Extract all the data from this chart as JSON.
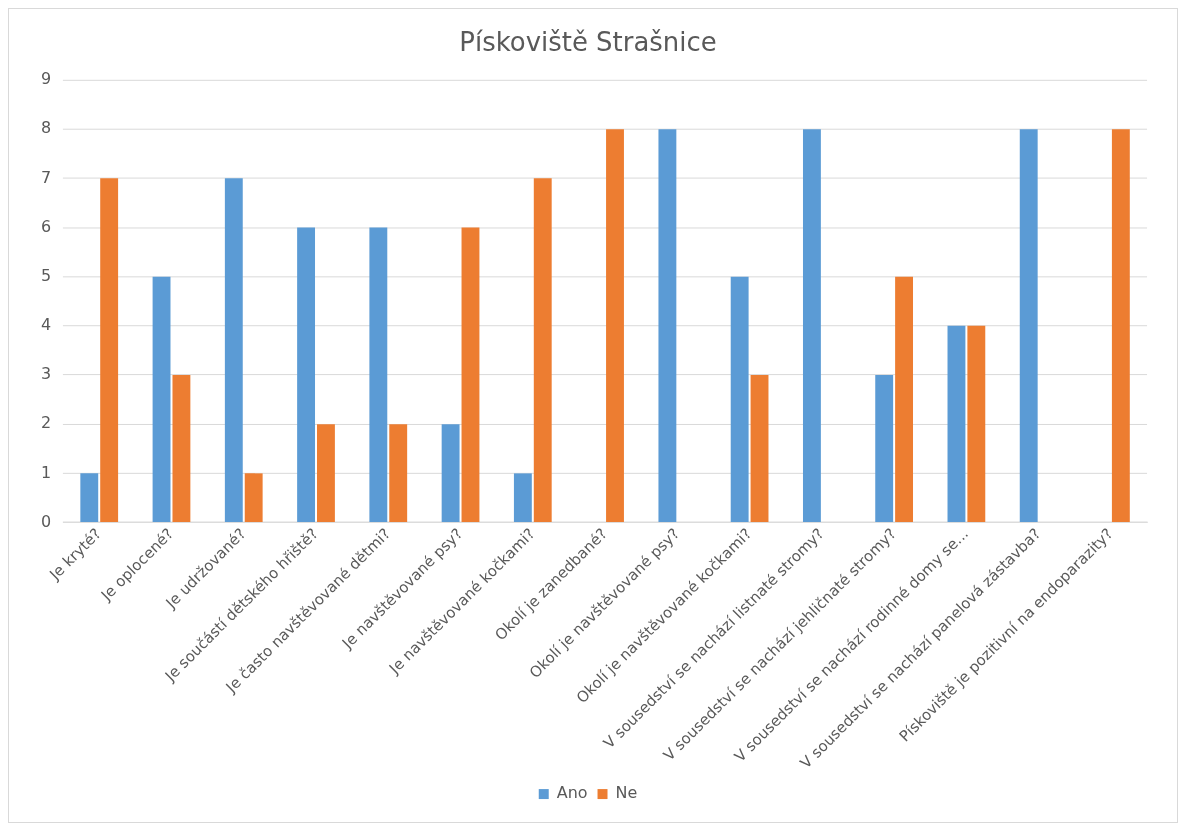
{
  "chart_data": {
    "type": "bar",
    "title": "Pískoviště Strašnice",
    "categories": [
      "Je kryté?",
      "Je oplocené?",
      "Je udržované?",
      "Je součástí dětského hřiště?",
      "Je často navštěvované dětmi?",
      "Je navštěvované psy?",
      "Je navštěvované kočkami?",
      "Okolí je zanedbané?",
      "Okolí je navštěvované psy?",
      "Okolí je navštěvované kočkami?",
      "V sousedství se nachází listnaté stromy?",
      "V sousedství se nachází jehličnaté stromy?",
      "V sousedství se nachází rodinné domy se...",
      "V sousedství se nachází panelová zástavba?",
      "Pískoviště je pozitivní na endoparazity?"
    ],
    "series": [
      {
        "name": "Ano",
        "color": "#5b9bd5",
        "values": [
          1,
          5,
          7,
          6,
          6,
          2,
          1,
          null,
          8,
          5,
          8,
          3,
          4,
          8,
          null
        ]
      },
      {
        "name": "Ne",
        "color": "#ed7d31",
        "values": [
          7,
          3,
          1,
          2,
          2,
          6,
          7,
          8,
          null,
          3,
          null,
          5,
          4,
          null,
          8
        ]
      }
    ],
    "ylim": [
      0,
      9
    ],
    "yticks": [
      0,
      1,
      2,
      3,
      4,
      5,
      6,
      7,
      8,
      9
    ],
    "grid": "y",
    "legend": "bottom"
  }
}
